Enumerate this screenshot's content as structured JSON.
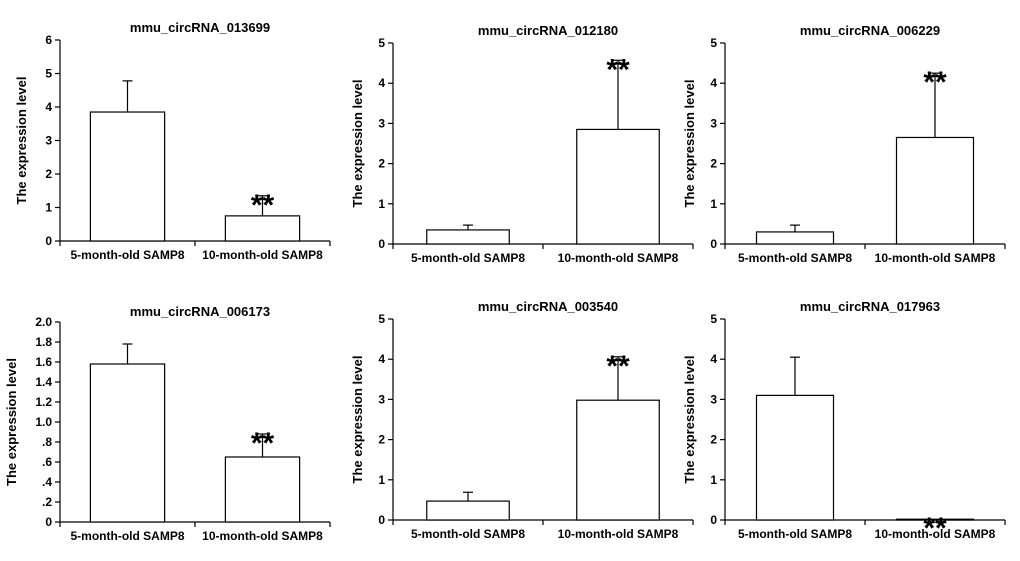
{
  "chart_data": [
    {
      "type": "bar",
      "title": "mmu_circRNA_013699",
      "ylabel": "The expression level",
      "xlabel": "",
      "categories": [
        "5-month-old SAMP8",
        "10-month-old SAMP8"
      ],
      "values": [
        3.85,
        0.75
      ],
      "errors": [
        0.93,
        0.6
      ],
      "significance": [
        "",
        "**"
      ],
      "ylim": [
        0,
        6
      ],
      "yticks": [
        "0",
        "1",
        "2",
        "3",
        "4",
        "5",
        "6"
      ]
    },
    {
      "type": "bar",
      "title": "mmu_circRNA_012180",
      "ylabel": "The expression level",
      "xlabel": "",
      "categories": [
        "5-month-old SAMP8",
        "10-month-old SAMP8"
      ],
      "values": [
        0.35,
        2.85
      ],
      "errors": [
        0.12,
        1.72
      ],
      "significance": [
        "",
        "**"
      ],
      "ylim": [
        0,
        5
      ],
      "yticks": [
        "0",
        "1",
        "2",
        "3",
        "4",
        "5"
      ]
    },
    {
      "type": "bar",
      "title": "mmu_circRNA_006229",
      "ylabel": "The expression level",
      "xlabel": "",
      "categories": [
        "5-month-old SAMP8",
        "10-month-old SAMP8"
      ],
      "values": [
        0.3,
        2.65
      ],
      "errors": [
        0.17,
        1.6
      ],
      "significance": [
        "",
        "**"
      ],
      "ylim": [
        0,
        5
      ],
      "yticks": [
        "0",
        "1",
        "2",
        "3",
        "4",
        "5"
      ]
    },
    {
      "type": "bar",
      "title": "mmu_circRNA_006173",
      "ylabel": "The expression level",
      "xlabel": "",
      "categories": [
        "5-month-old SAMP8",
        "10-month-old SAMP8"
      ],
      "values": [
        1.58,
        0.65
      ],
      "errors": [
        0.2,
        0.23
      ],
      "significance": [
        "",
        "**"
      ],
      "ylim": [
        0,
        2
      ],
      "yticks": [
        "0",
        ".2",
        ".4",
        ".6",
        ".8",
        "1.0",
        "1.2",
        "1.4",
        "1.6",
        "1.8",
        "2.0"
      ]
    },
    {
      "type": "bar",
      "title": "mmu_circRNA_003540",
      "ylabel": "The expression level",
      "xlabel": "",
      "categories": [
        "5-month-old SAMP8",
        "10-month-old SAMP8"
      ],
      "values": [
        0.47,
        2.98
      ],
      "errors": [
        0.22,
        1.08
      ],
      "significance": [
        "",
        "**"
      ],
      "ylim": [
        0,
        5
      ],
      "yticks": [
        "0",
        "1",
        "2",
        "3",
        "4",
        "5"
      ]
    },
    {
      "type": "bar",
      "title": "mmu_circRNA_017963",
      "ylabel": "The expression level",
      "xlabel": "",
      "categories": [
        "5-month-old SAMP8",
        "10-month-old SAMP8"
      ],
      "values": [
        3.1,
        0.02
      ],
      "errors": [
        0.95,
        0
      ],
      "significance": [
        "",
        "**"
      ],
      "ylim": [
        0,
        5
      ],
      "yticks": [
        "0",
        "1",
        "2",
        "3",
        "4",
        "5"
      ]
    }
  ]
}
